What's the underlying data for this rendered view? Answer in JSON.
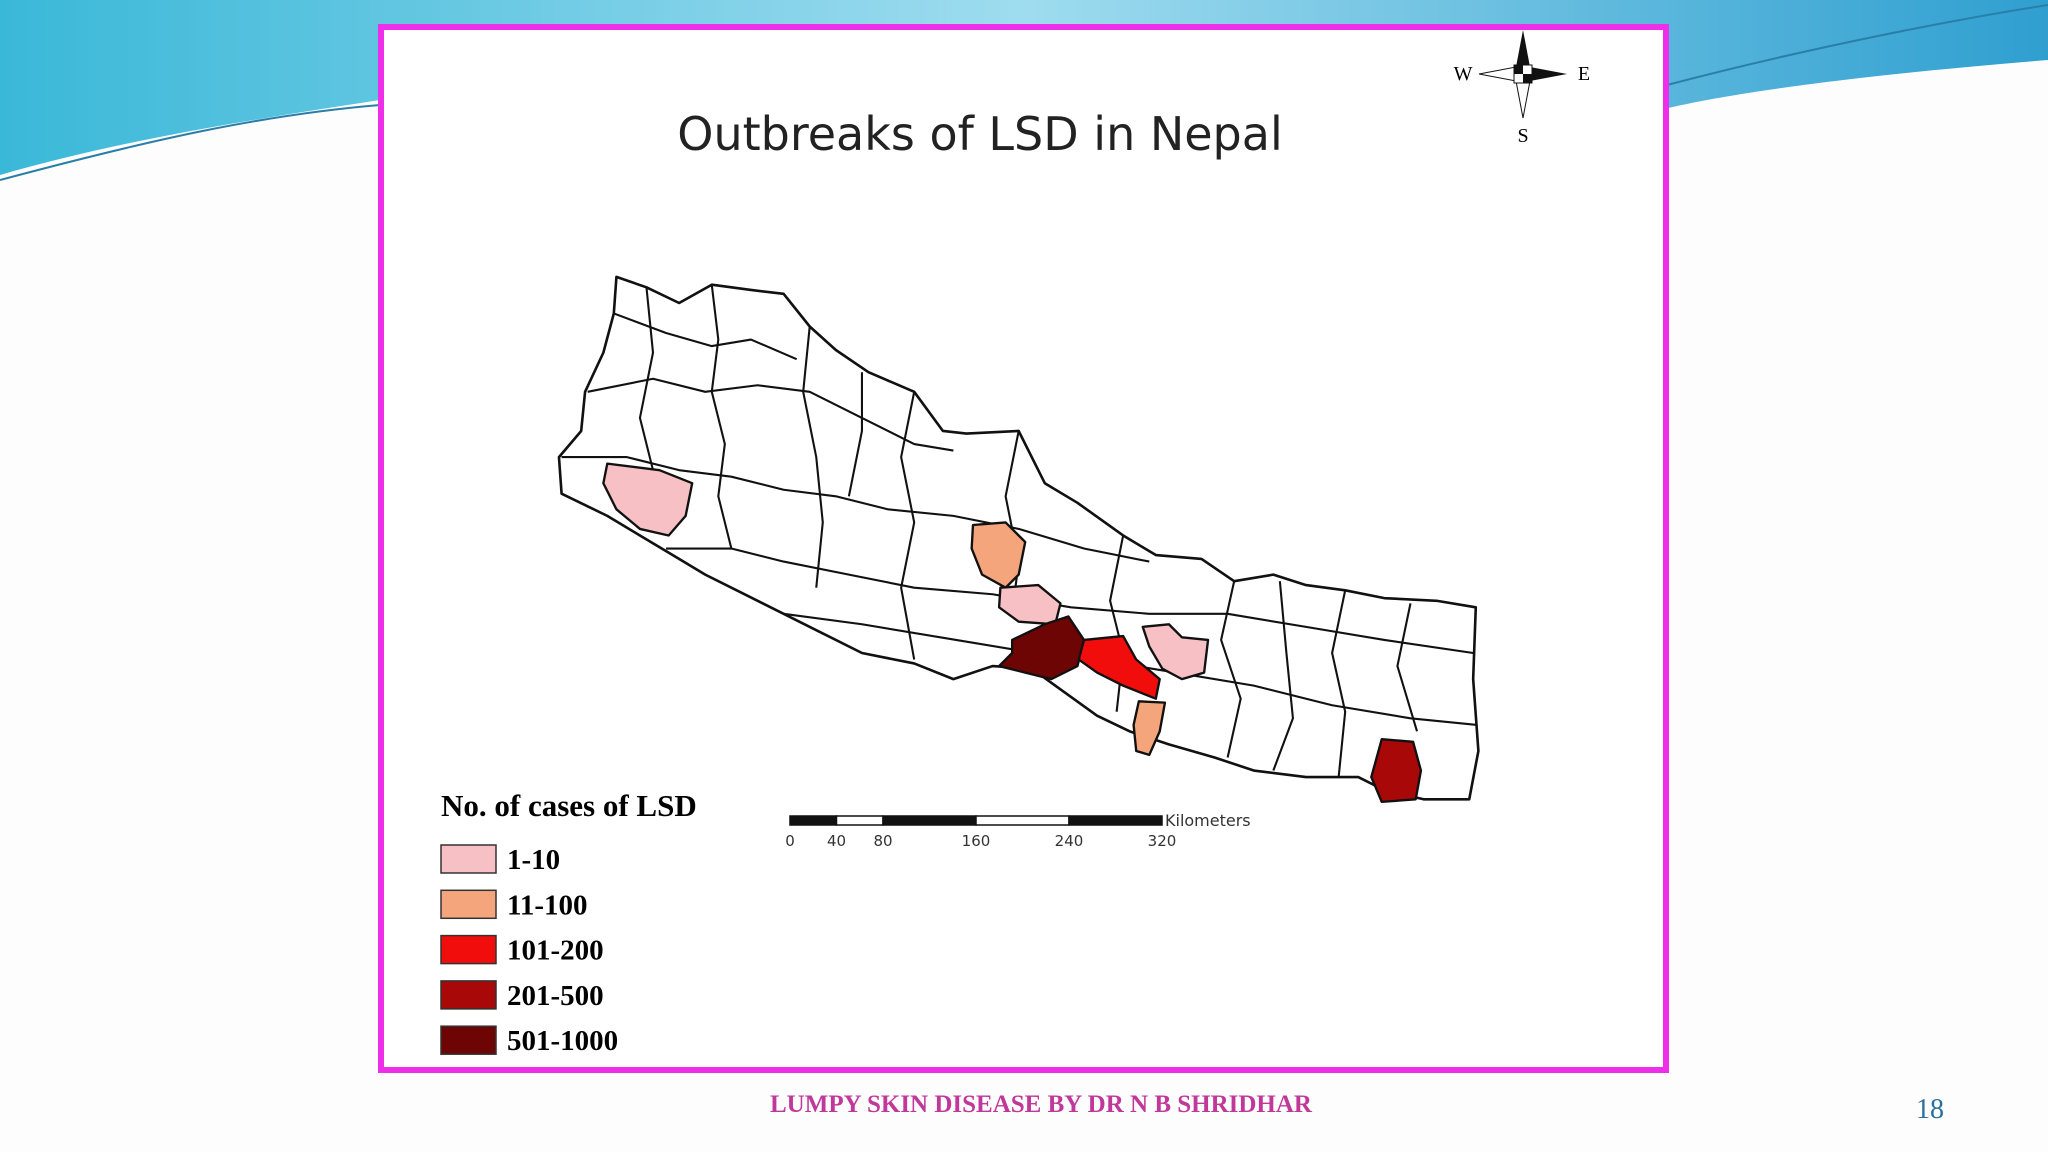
{
  "slide": {
    "map": {
      "title": "Outbreaks of LSD in Nepal",
      "compass": {
        "west": "W",
        "east": "E",
        "south": "S"
      },
      "legend": {
        "title": "No. of  cases of  LSD",
        "items": [
          {
            "label": "1-10",
            "color": "#f7c0c4"
          },
          {
            "label": "11-100",
            "color": "#f5a57c"
          },
          {
            "label": "101-200",
            "color": "#f20d0d"
          },
          {
            "label": "201-500",
            "color": "#a80808"
          },
          {
            "label": "501-1000",
            "color": "#6e0505"
          }
        ]
      },
      "scale_bar": {
        "ticks": [
          0,
          40,
          80,
          160,
          240,
          320
        ],
        "unit": "Kilometers"
      }
    },
    "footer": "LUMPY SKIN DISEASE BY DR N B SHRIDHAR",
    "page_number": "18"
  }
}
